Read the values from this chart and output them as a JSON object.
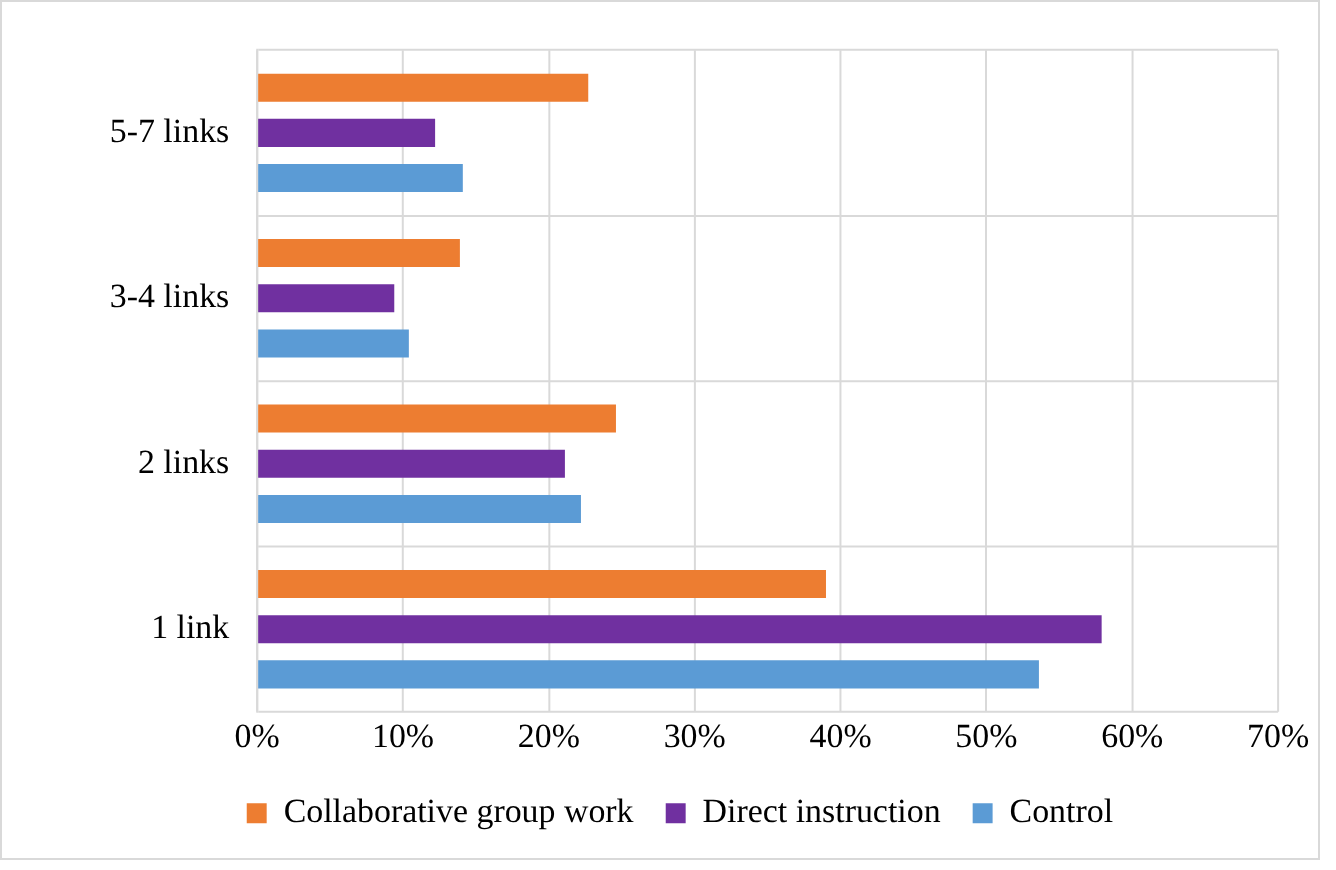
{
  "chart_data": {
    "type": "bar",
    "orientation": "horizontal",
    "categories": [
      "5-7 links",
      "3-4 links",
      "2 links",
      "1 link"
    ],
    "series": [
      {
        "name": "Collaborative group work",
        "color": "#ed7d31",
        "values": [
          22.7,
          13.9,
          24.6,
          39.0
        ]
      },
      {
        "name": "Direct instruction",
        "color": "#7030a0",
        "values": [
          12.2,
          9.4,
          21.1,
          57.9
        ]
      },
      {
        "name": "Control",
        "color": "#5b9bd5",
        "values": [
          14.1,
          10.4,
          22.2,
          53.6
        ]
      }
    ],
    "xlim": [
      0,
      70
    ],
    "xticks": [
      {
        "value": 0,
        "label": "0%"
      },
      {
        "value": 10,
        "label": "10%"
      },
      {
        "value": 20,
        "label": "20%"
      },
      {
        "value": 30,
        "label": "30%"
      },
      {
        "value": 40,
        "label": "40%"
      },
      {
        "value": 50,
        "label": "50%"
      },
      {
        "value": 60,
        "label": "60%"
      },
      {
        "value": 70,
        "label": "70%"
      }
    ],
    "grid": true,
    "legend": "bottom"
  }
}
